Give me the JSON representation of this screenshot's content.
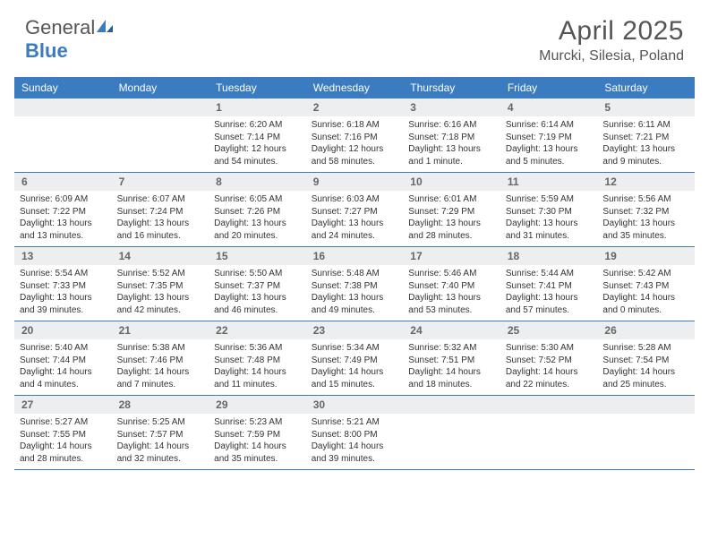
{
  "brand": {
    "part1": "General",
    "part2": "Blue"
  },
  "title": "April 2025",
  "location": "Murcki, Silesia, Poland",
  "colors": {
    "header_bg": "#3b7bbf",
    "daynum_bg": "#eceeef",
    "text": "#333333",
    "border": "#3b7bbf"
  },
  "weekdays": [
    "Sunday",
    "Monday",
    "Tuesday",
    "Wednesday",
    "Thursday",
    "Friday",
    "Saturday"
  ],
  "weeks": [
    [
      null,
      null,
      {
        "n": "1",
        "sr": "6:20 AM",
        "ss": "7:14 PM",
        "dl": "12 hours and 54 minutes."
      },
      {
        "n": "2",
        "sr": "6:18 AM",
        "ss": "7:16 PM",
        "dl": "12 hours and 58 minutes."
      },
      {
        "n": "3",
        "sr": "6:16 AM",
        "ss": "7:18 PM",
        "dl": "13 hours and 1 minute."
      },
      {
        "n": "4",
        "sr": "6:14 AM",
        "ss": "7:19 PM",
        "dl": "13 hours and 5 minutes."
      },
      {
        "n": "5",
        "sr": "6:11 AM",
        "ss": "7:21 PM",
        "dl": "13 hours and 9 minutes."
      }
    ],
    [
      {
        "n": "6",
        "sr": "6:09 AM",
        "ss": "7:22 PM",
        "dl": "13 hours and 13 minutes."
      },
      {
        "n": "7",
        "sr": "6:07 AM",
        "ss": "7:24 PM",
        "dl": "13 hours and 16 minutes."
      },
      {
        "n": "8",
        "sr": "6:05 AM",
        "ss": "7:26 PM",
        "dl": "13 hours and 20 minutes."
      },
      {
        "n": "9",
        "sr": "6:03 AM",
        "ss": "7:27 PM",
        "dl": "13 hours and 24 minutes."
      },
      {
        "n": "10",
        "sr": "6:01 AM",
        "ss": "7:29 PM",
        "dl": "13 hours and 28 minutes."
      },
      {
        "n": "11",
        "sr": "5:59 AM",
        "ss": "7:30 PM",
        "dl": "13 hours and 31 minutes."
      },
      {
        "n": "12",
        "sr": "5:56 AM",
        "ss": "7:32 PM",
        "dl": "13 hours and 35 minutes."
      }
    ],
    [
      {
        "n": "13",
        "sr": "5:54 AM",
        "ss": "7:33 PM",
        "dl": "13 hours and 39 minutes."
      },
      {
        "n": "14",
        "sr": "5:52 AM",
        "ss": "7:35 PM",
        "dl": "13 hours and 42 minutes."
      },
      {
        "n": "15",
        "sr": "5:50 AM",
        "ss": "7:37 PM",
        "dl": "13 hours and 46 minutes."
      },
      {
        "n": "16",
        "sr": "5:48 AM",
        "ss": "7:38 PM",
        "dl": "13 hours and 49 minutes."
      },
      {
        "n": "17",
        "sr": "5:46 AM",
        "ss": "7:40 PM",
        "dl": "13 hours and 53 minutes."
      },
      {
        "n": "18",
        "sr": "5:44 AM",
        "ss": "7:41 PM",
        "dl": "13 hours and 57 minutes."
      },
      {
        "n": "19",
        "sr": "5:42 AM",
        "ss": "7:43 PM",
        "dl": "14 hours and 0 minutes."
      }
    ],
    [
      {
        "n": "20",
        "sr": "5:40 AM",
        "ss": "7:44 PM",
        "dl": "14 hours and 4 minutes."
      },
      {
        "n": "21",
        "sr": "5:38 AM",
        "ss": "7:46 PM",
        "dl": "14 hours and 7 minutes."
      },
      {
        "n": "22",
        "sr": "5:36 AM",
        "ss": "7:48 PM",
        "dl": "14 hours and 11 minutes."
      },
      {
        "n": "23",
        "sr": "5:34 AM",
        "ss": "7:49 PM",
        "dl": "14 hours and 15 minutes."
      },
      {
        "n": "24",
        "sr": "5:32 AM",
        "ss": "7:51 PM",
        "dl": "14 hours and 18 minutes."
      },
      {
        "n": "25",
        "sr": "5:30 AM",
        "ss": "7:52 PM",
        "dl": "14 hours and 22 minutes."
      },
      {
        "n": "26",
        "sr": "5:28 AM",
        "ss": "7:54 PM",
        "dl": "14 hours and 25 minutes."
      }
    ],
    [
      {
        "n": "27",
        "sr": "5:27 AM",
        "ss": "7:55 PM",
        "dl": "14 hours and 28 minutes."
      },
      {
        "n": "28",
        "sr": "5:25 AM",
        "ss": "7:57 PM",
        "dl": "14 hours and 32 minutes."
      },
      {
        "n": "29",
        "sr": "5:23 AM",
        "ss": "7:59 PM",
        "dl": "14 hours and 35 minutes."
      },
      {
        "n": "30",
        "sr": "5:21 AM",
        "ss": "8:00 PM",
        "dl": "14 hours and 39 minutes."
      },
      null,
      null,
      null
    ]
  ],
  "labels": {
    "sunrise": "Sunrise: ",
    "sunset": "Sunset: ",
    "daylight": "Daylight: "
  }
}
